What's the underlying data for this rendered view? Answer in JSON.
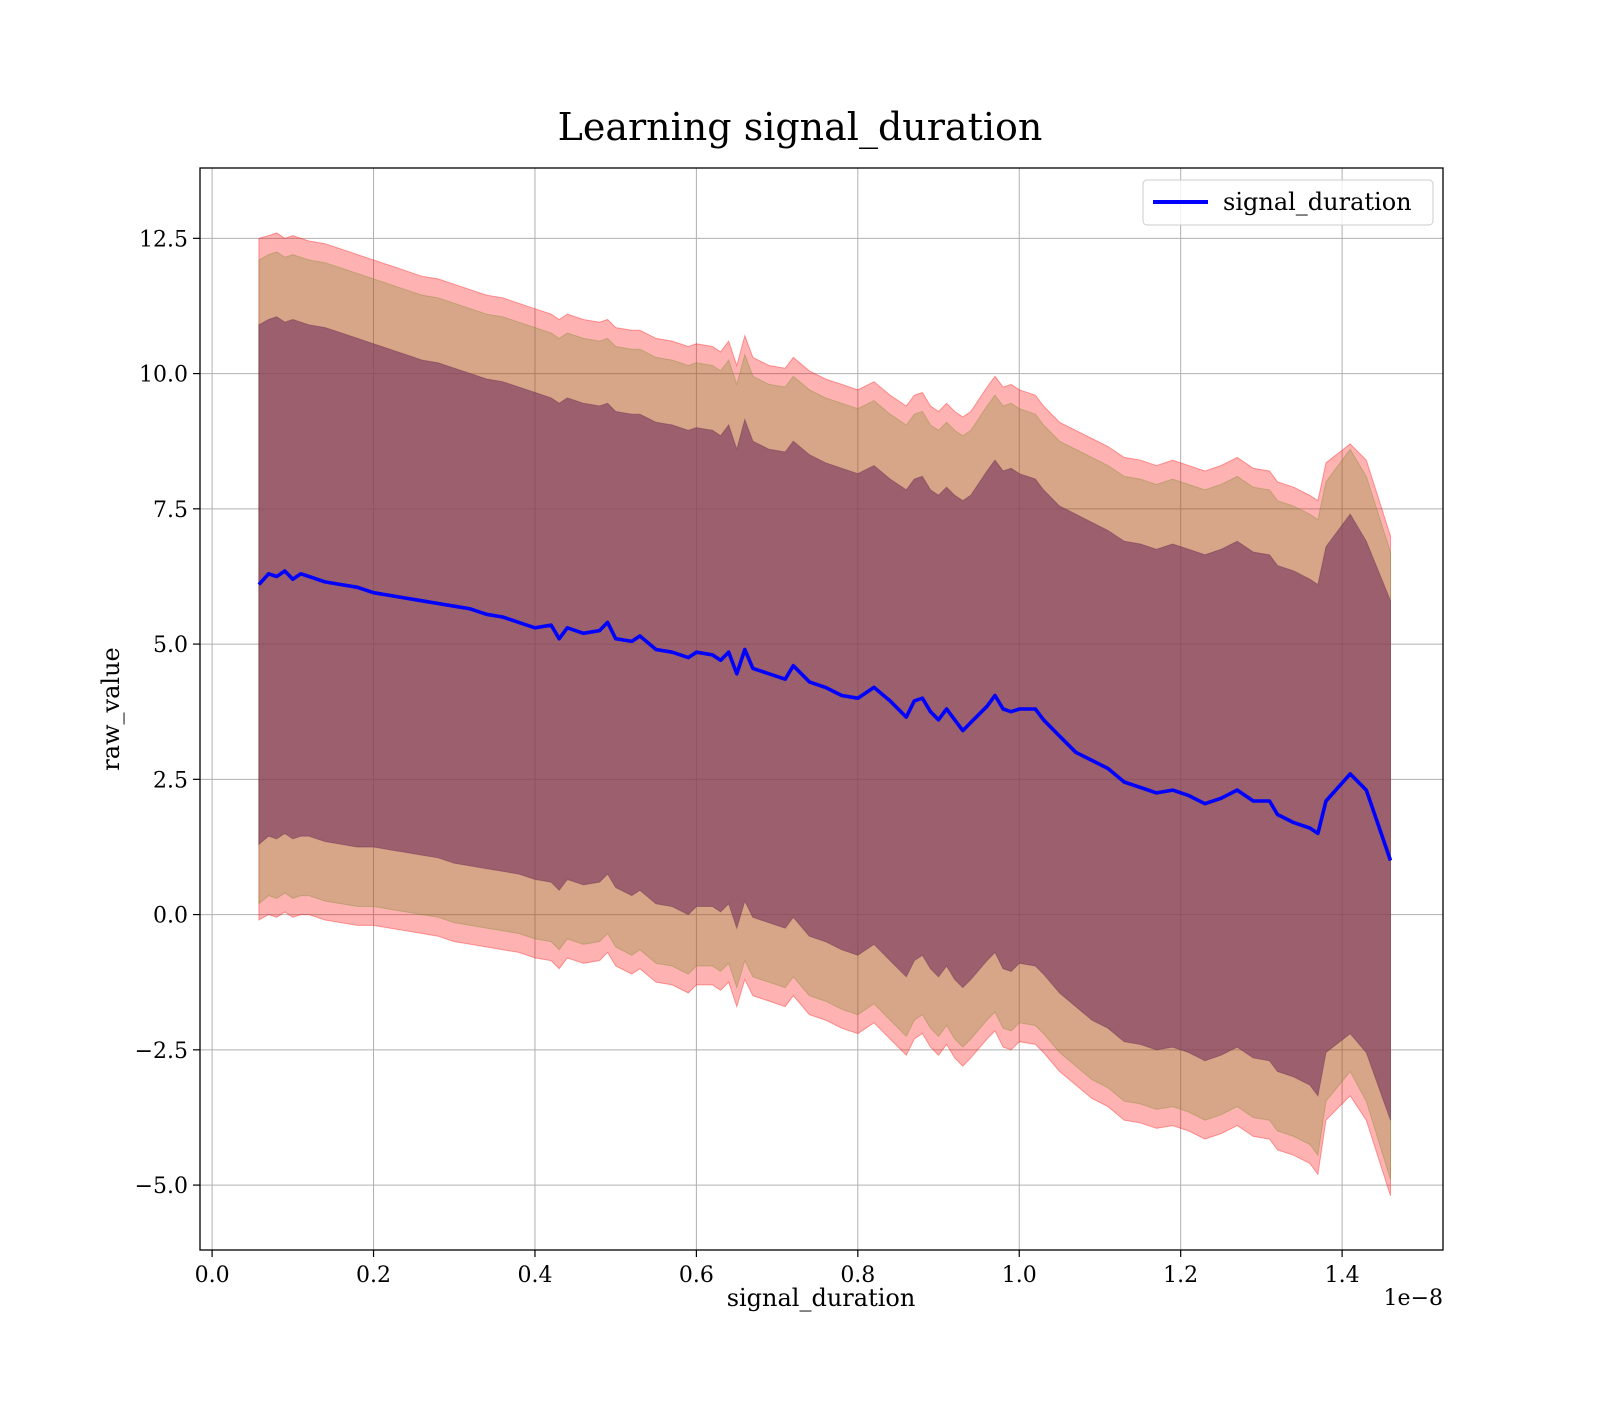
{
  "chart_data": {
    "type": "area",
    "title": "Learning signal_duration",
    "xlabel": "signal_duration",
    "ylabel": "raw_value",
    "x_offset_label": "1e−8",
    "xlim": [
      -0.015,
      1.525
    ],
    "ylim": [
      -6.2,
      13.8
    ],
    "x_ticks": [
      0.0,
      0.2,
      0.4,
      0.6,
      0.8,
      1.0,
      1.2,
      1.4
    ],
    "x_tick_labels": [
      "0.0",
      "0.2",
      "0.4",
      "0.6",
      "0.8",
      "1.0",
      "1.2",
      "1.4"
    ],
    "y_ticks": [
      -5.0,
      -2.5,
      0.0,
      2.5,
      5.0,
      7.5,
      10.0,
      12.5
    ],
    "y_tick_labels": [
      "−5.0",
      "−2.5",
      "0.0",
      "2.5",
      "5.0",
      "7.5",
      "10.0",
      "12.5"
    ],
    "grid": true,
    "legend": {
      "placement": "upper-right",
      "entries": [
        "signal_duration"
      ]
    },
    "colors": {
      "line": "#0000ff",
      "band_outer": "#ff0000",
      "band_middle": "#7a8a2a",
      "band_inner": "#4b0f3a",
      "grid": "#b0b0b0"
    },
    "x": [
      0.058,
      0.07,
      0.08,
      0.09,
      0.1,
      0.11,
      0.12,
      0.14,
      0.16,
      0.18,
      0.2,
      0.22,
      0.24,
      0.26,
      0.28,
      0.3,
      0.32,
      0.34,
      0.36,
      0.38,
      0.4,
      0.42,
      0.43,
      0.44,
      0.46,
      0.48,
      0.49,
      0.5,
      0.52,
      0.53,
      0.55,
      0.57,
      0.59,
      0.6,
      0.62,
      0.63,
      0.64,
      0.65,
      0.66,
      0.67,
      0.69,
      0.71,
      0.72,
      0.74,
      0.76,
      0.78,
      0.8,
      0.82,
      0.84,
      0.86,
      0.87,
      0.88,
      0.89,
      0.9,
      0.91,
      0.92,
      0.93,
      0.94,
      0.96,
      0.97,
      0.98,
      0.99,
      1.0,
      1.02,
      1.03,
      1.05,
      1.07,
      1.09,
      1.11,
      1.13,
      1.15,
      1.17,
      1.19,
      1.21,
      1.23,
      1.25,
      1.27,
      1.29,
      1.31,
      1.32,
      1.34,
      1.36,
      1.37,
      1.38,
      1.41,
      1.43,
      1.46
    ],
    "series": [
      {
        "name": "signal_duration",
        "values": [
          6.1,
          6.3,
          6.25,
          6.35,
          6.2,
          6.3,
          6.25,
          6.15,
          6.1,
          6.05,
          5.95,
          5.9,
          5.85,
          5.8,
          5.75,
          5.7,
          5.65,
          5.55,
          5.5,
          5.4,
          5.3,
          5.35,
          5.1,
          5.3,
          5.2,
          5.25,
          5.4,
          5.1,
          5.05,
          5.15,
          4.9,
          4.85,
          4.75,
          4.85,
          4.8,
          4.7,
          4.85,
          4.45,
          4.9,
          4.55,
          4.45,
          4.35,
          4.6,
          4.3,
          4.2,
          4.05,
          4.0,
          4.2,
          3.95,
          3.65,
          3.95,
          4.0,
          3.75,
          3.6,
          3.8,
          3.6,
          3.4,
          3.55,
          3.85,
          4.05,
          3.8,
          3.75,
          3.8,
          3.8,
          3.6,
          3.3,
          3.0,
          2.85,
          2.7,
          2.45,
          2.35,
          2.25,
          2.3,
          2.2,
          2.05,
          2.15,
          2.3,
          2.1,
          2.1,
          1.85,
          1.7,
          1.6,
          1.5,
          2.1,
          2.6,
          2.3,
          1.0
        ]
      }
    ],
    "bands": [
      {
        "upper": [
          12.5,
          12.55,
          12.6,
          12.5,
          12.55,
          12.5,
          12.45,
          12.4,
          12.3,
          12.2,
          12.1,
          12.0,
          11.9,
          11.8,
          11.75,
          11.65,
          11.55,
          11.45,
          11.4,
          11.3,
          11.2,
          11.1,
          11.0,
          11.1,
          11.0,
          10.95,
          11.0,
          10.85,
          10.8,
          10.8,
          10.65,
          10.6,
          10.5,
          10.55,
          10.5,
          10.4,
          10.6,
          10.15,
          10.7,
          10.3,
          10.15,
          10.1,
          10.3,
          10.05,
          9.9,
          9.8,
          9.7,
          9.85,
          9.6,
          9.4,
          9.6,
          9.65,
          9.4,
          9.3,
          9.45,
          9.3,
          9.2,
          9.3,
          9.75,
          9.95,
          9.75,
          9.8,
          9.7,
          9.6,
          9.4,
          9.1,
          8.95,
          8.8,
          8.65,
          8.45,
          8.4,
          8.3,
          8.4,
          8.3,
          8.2,
          8.3,
          8.45,
          8.25,
          8.2,
          8.0,
          7.9,
          7.75,
          7.65,
          8.35,
          8.7,
          8.4,
          7.0
        ],
        "lower": [
          -0.1,
          0.0,
          -0.05,
          0.05,
          -0.05,
          0.0,
          0.0,
          -0.1,
          -0.15,
          -0.2,
          -0.2,
          -0.25,
          -0.3,
          -0.35,
          -0.4,
          -0.5,
          -0.55,
          -0.6,
          -0.65,
          -0.7,
          -0.8,
          -0.85,
          -1.0,
          -0.8,
          -0.9,
          -0.85,
          -0.7,
          -0.95,
          -1.1,
          -1.0,
          -1.25,
          -1.3,
          -1.45,
          -1.3,
          -1.3,
          -1.4,
          -1.25,
          -1.7,
          -1.2,
          -1.5,
          -1.6,
          -1.7,
          -1.5,
          -1.85,
          -1.95,
          -2.1,
          -2.2,
          -2.0,
          -2.3,
          -2.6,
          -2.3,
          -2.2,
          -2.45,
          -2.6,
          -2.4,
          -2.65,
          -2.8,
          -2.65,
          -2.3,
          -2.15,
          -2.45,
          -2.5,
          -2.35,
          -2.4,
          -2.55,
          -2.9,
          -3.15,
          -3.4,
          -3.55,
          -3.8,
          -3.85,
          -3.95,
          -3.9,
          -4.0,
          -4.15,
          -4.05,
          -3.9,
          -4.1,
          -4.15,
          -4.35,
          -4.45,
          -4.6,
          -4.8,
          -3.8,
          -3.35,
          -3.8,
          -5.2
        ]
      },
      {
        "upper": [
          12.1,
          12.2,
          12.25,
          12.15,
          12.2,
          12.15,
          12.1,
          12.05,
          11.95,
          11.85,
          11.75,
          11.65,
          11.55,
          11.45,
          11.4,
          11.3,
          11.2,
          11.1,
          11.05,
          10.95,
          10.85,
          10.75,
          10.65,
          10.75,
          10.65,
          10.6,
          10.65,
          10.5,
          10.45,
          10.45,
          10.3,
          10.25,
          10.15,
          10.2,
          10.15,
          10.05,
          10.25,
          9.8,
          10.35,
          9.95,
          9.8,
          9.75,
          9.95,
          9.7,
          9.55,
          9.45,
          9.35,
          9.5,
          9.25,
          9.05,
          9.25,
          9.3,
          9.05,
          8.95,
          9.1,
          8.95,
          8.85,
          8.95,
          9.4,
          9.6,
          9.4,
          9.45,
          9.35,
          9.25,
          9.05,
          8.75,
          8.6,
          8.45,
          8.3,
          8.1,
          8.05,
          7.95,
          8.05,
          7.95,
          7.85,
          7.95,
          8.1,
          7.9,
          7.85,
          7.65,
          7.55,
          7.4,
          7.3,
          8.0,
          8.6,
          8.1,
          6.7
        ],
        "lower": [
          0.2,
          0.35,
          0.3,
          0.4,
          0.3,
          0.35,
          0.35,
          0.25,
          0.2,
          0.15,
          0.15,
          0.1,
          0.05,
          0.0,
          -0.05,
          -0.15,
          -0.2,
          -0.25,
          -0.3,
          -0.35,
          -0.45,
          -0.5,
          -0.65,
          -0.45,
          -0.55,
          -0.5,
          -0.35,
          -0.6,
          -0.75,
          -0.65,
          -0.9,
          -0.95,
          -1.1,
          -0.95,
          -0.95,
          -1.05,
          -0.9,
          -1.35,
          -0.85,
          -1.15,
          -1.25,
          -1.35,
          -1.15,
          -1.5,
          -1.6,
          -1.75,
          -1.85,
          -1.65,
          -1.95,
          -2.25,
          -1.95,
          -1.85,
          -2.1,
          -2.25,
          -2.05,
          -2.3,
          -2.45,
          -2.3,
          -1.95,
          -1.8,
          -2.1,
          -2.15,
          -2.0,
          -2.05,
          -2.2,
          -2.55,
          -2.8,
          -3.05,
          -3.2,
          -3.45,
          -3.5,
          -3.6,
          -3.55,
          -3.65,
          -3.8,
          -3.7,
          -3.55,
          -3.75,
          -3.8,
          -4.0,
          -4.1,
          -4.25,
          -4.45,
          -3.45,
          -2.9,
          -3.45,
          -4.9
        ]
      },
      {
        "upper": [
          10.9,
          11.0,
          11.05,
          10.95,
          11.0,
          10.95,
          10.9,
          10.85,
          10.75,
          10.65,
          10.55,
          10.45,
          10.35,
          10.25,
          10.2,
          10.1,
          10.0,
          9.9,
          9.85,
          9.75,
          9.65,
          9.55,
          9.45,
          9.55,
          9.45,
          9.4,
          9.45,
          9.3,
          9.25,
          9.25,
          9.1,
          9.05,
          8.95,
          9.0,
          8.95,
          8.85,
          9.05,
          8.6,
          9.15,
          8.75,
          8.6,
          8.55,
          8.75,
          8.5,
          8.35,
          8.25,
          8.15,
          8.3,
          8.05,
          7.85,
          8.05,
          8.1,
          7.85,
          7.75,
          7.9,
          7.75,
          7.65,
          7.75,
          8.2,
          8.4,
          8.2,
          8.25,
          8.15,
          8.05,
          7.85,
          7.55,
          7.4,
          7.25,
          7.1,
          6.9,
          6.85,
          6.75,
          6.85,
          6.75,
          6.65,
          6.75,
          6.9,
          6.7,
          6.65,
          6.45,
          6.35,
          6.2,
          6.1,
          6.8,
          7.4,
          6.9,
          5.8
        ],
        "lower": [
          1.3,
          1.45,
          1.4,
          1.5,
          1.4,
          1.45,
          1.45,
          1.35,
          1.3,
          1.25,
          1.25,
          1.2,
          1.15,
          1.1,
          1.05,
          0.95,
          0.9,
          0.85,
          0.8,
          0.75,
          0.65,
          0.6,
          0.45,
          0.65,
          0.55,
          0.6,
          0.75,
          0.5,
          0.35,
          0.45,
          0.2,
          0.15,
          0.0,
          0.15,
          0.15,
          0.05,
          0.2,
          -0.25,
          0.25,
          -0.05,
          -0.15,
          -0.25,
          -0.05,
          -0.4,
          -0.5,
          -0.65,
          -0.75,
          -0.55,
          -0.85,
          -1.15,
          -0.85,
          -0.75,
          -1.0,
          -1.15,
          -0.95,
          -1.2,
          -1.35,
          -1.2,
          -0.85,
          -0.7,
          -1.0,
          -1.05,
          -0.9,
          -0.95,
          -1.1,
          -1.45,
          -1.7,
          -1.95,
          -2.1,
          -2.35,
          -2.4,
          -2.5,
          -2.45,
          -2.55,
          -2.7,
          -2.6,
          -2.45,
          -2.65,
          -2.7,
          -2.9,
          -3.0,
          -3.15,
          -3.35,
          -2.55,
          -2.2,
          -2.55,
          -3.8
        ]
      }
    ]
  }
}
